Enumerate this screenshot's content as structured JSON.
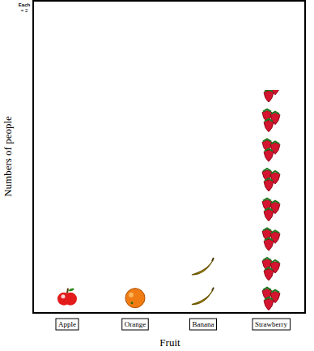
{
  "chart_data": {
    "type": "pictograph",
    "x_label": "Fruit",
    "y_label": "Numbers of   people",
    "key": {
      "prefix": "Each",
      "value": 2,
      "label": "= 2"
    },
    "categories": [
      "Apple",
      "Orange",
      "Banana",
      "Strawberry"
    ],
    "values": [
      2,
      2,
      4,
      15
    ],
    "colors": [
      "#e41b1b",
      "#f07d14",
      "#f2d21c",
      "#d4152f"
    ],
    "ylim": [
      0,
      21
    ],
    "tick_labels": "x"
  }
}
